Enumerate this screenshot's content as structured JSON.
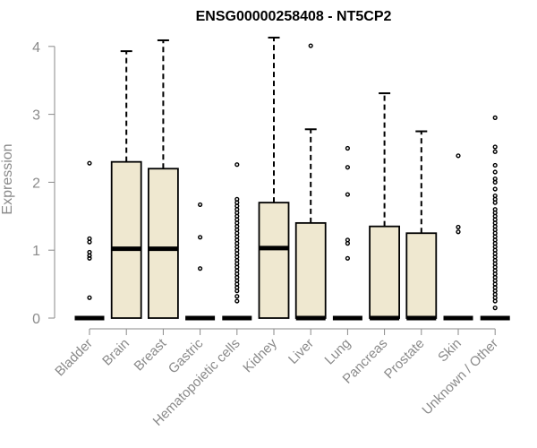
{
  "chart_data": {
    "type": "boxplot",
    "title": "ENSG00000258408 - NT5CP2",
    "xlabel": "",
    "ylabel": "Expression",
    "ylim": [
      0,
      4
    ],
    "yticks": [
      "0",
      "1",
      "2",
      "3",
      "4"
    ],
    "grid": false,
    "legend": "none",
    "colors": {
      "box_fill": "#efe8d0",
      "box_stroke": "#000000",
      "outlier": "#000000",
      "axis": "#8a8a8a"
    },
    "categories": [
      "Bladder",
      "Brain",
      "Breast",
      "Gastric",
      "Hematopoietic cells",
      "Kidney",
      "Liver",
      "Lung",
      "Pancreas",
      "Prostate",
      "Skin",
      "Unknown / Other"
    ],
    "boxes": [
      {
        "q1": 0,
        "median": 0,
        "q3": 0,
        "whisker_low": 0,
        "whisker_high": 0,
        "outliers": [
          0.3,
          0.88,
          0.92,
          0.97,
          1.12,
          1.17,
          2.28
        ]
      },
      {
        "q1": 0,
        "median": 1.02,
        "q3": 2.3,
        "whisker_low": 0,
        "whisker_high": 3.93,
        "outliers": []
      },
      {
        "q1": 0,
        "median": 1.02,
        "q3": 2.2,
        "whisker_low": 0,
        "whisker_high": 4.09,
        "outliers": []
      },
      {
        "q1": 0,
        "median": 0,
        "q3": 0,
        "whisker_low": 0,
        "whisker_high": 0,
        "outliers": [
          0.73,
          1.19,
          1.67
        ]
      },
      {
        "q1": 0,
        "median": 0,
        "q3": 0,
        "whisker_low": 0,
        "whisker_high": 0,
        "outliers": [
          0.25,
          0.32,
          0.4,
          0.45,
          0.5,
          0.55,
          0.6,
          0.65,
          0.7,
          0.75,
          0.8,
          0.85,
          0.9,
          0.95,
          1.0,
          1.05,
          1.1,
          1.15,
          1.2,
          1.25,
          1.3,
          1.35,
          1.4,
          1.45,
          1.5,
          1.55,
          1.6,
          1.65,
          1.7,
          1.75,
          2.26
        ]
      },
      {
        "q1": 0,
        "median": 1.03,
        "q3": 1.7,
        "whisker_low": 0,
        "whisker_high": 4.13,
        "outliers": []
      },
      {
        "q1": 0,
        "median": 0,
        "q3": 1.4,
        "whisker_low": 0,
        "whisker_high": 2.78,
        "outliers": [
          4.01
        ]
      },
      {
        "q1": 0,
        "median": 0,
        "q3": 0,
        "whisker_low": 0,
        "whisker_high": 0,
        "outliers": [
          0.88,
          1.1,
          1.15,
          1.82,
          2.22,
          2.5
        ]
      },
      {
        "q1": 0,
        "median": 0,
        "q3": 1.35,
        "whisker_low": 0,
        "whisker_high": 3.31,
        "outliers": []
      },
      {
        "q1": 0,
        "median": 0,
        "q3": 1.25,
        "whisker_low": 0,
        "whisker_high": 2.75,
        "outliers": []
      },
      {
        "q1": 0,
        "median": 0,
        "q3": 0,
        "whisker_low": 0,
        "whisker_high": 0,
        "outliers": [
          1.27,
          1.34,
          2.39
        ]
      },
      {
        "q1": 0,
        "median": 0,
        "q3": 0,
        "whisker_low": 0,
        "whisker_high": 0,
        "outliers": [
          0.15,
          0.25,
          0.3,
          0.35,
          0.4,
          0.45,
          0.5,
          0.55,
          0.6,
          0.65,
          0.7,
          0.75,
          0.8,
          0.85,
          0.9,
          0.95,
          1.0,
          1.05,
          1.1,
          1.15,
          1.2,
          1.25,
          1.3,
          1.35,
          1.4,
          1.45,
          1.5,
          1.55,
          1.6,
          1.7,
          1.75,
          1.8,
          1.9,
          2.0,
          2.05,
          2.15,
          2.25,
          2.45,
          2.52,
          2.95
        ]
      }
    ]
  }
}
